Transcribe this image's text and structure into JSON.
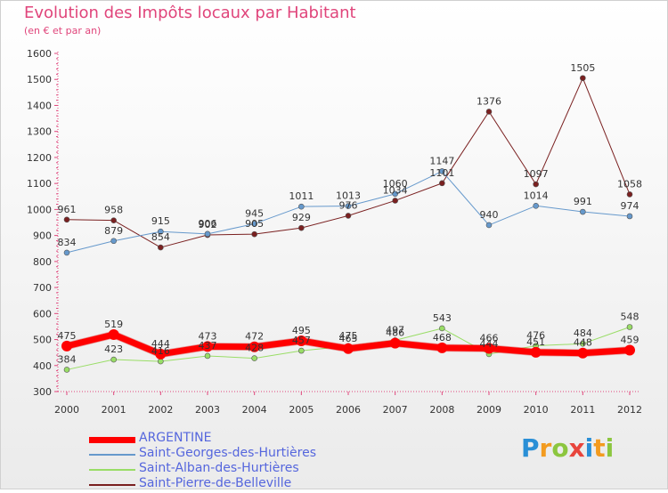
{
  "title": "Evolution des Impôts locaux par Habitant",
  "subtitle": "(en € et par an)",
  "logo": {
    "text": "Proxiti",
    "letters": [
      {
        "ch": "P",
        "color": "#2a8fd6"
      },
      {
        "ch": "r",
        "color": "#f39b1f"
      },
      {
        "ch": "o",
        "color": "#8cc63f"
      },
      {
        "ch": "x",
        "color": "#e8453c"
      },
      {
        "ch": "i",
        "color": "#2a8fd6"
      },
      {
        "ch": "t",
        "color": "#f39b1f"
      },
      {
        "ch": "i",
        "color": "#8cc63f"
      }
    ]
  },
  "chart_data": {
    "type": "line",
    "x": [
      "2000",
      "2001",
      "2002",
      "2003",
      "2004",
      "2005",
      "2006",
      "2007",
      "2008",
      "2009",
      "2010",
      "2011",
      "2012"
    ],
    "ylim": [
      300,
      1600
    ],
    "yticks": [
      300,
      400,
      500,
      600,
      700,
      800,
      900,
      1000,
      1100,
      1200,
      1300,
      1400,
      1500,
      1600
    ],
    "grid": false,
    "legend_position": "bottom-left",
    "series": [
      {
        "name": "ARGENTINE",
        "color": "#ff0000",
        "values": [
          475,
          519,
          444,
          473,
          472,
          495,
          465,
          486,
          468,
          466,
          451,
          448,
          459
        ]
      },
      {
        "name": "Saint-Georges-des-Hurtières",
        "color": "#6699cc",
        "values": [
          834,
          879,
          915,
          906,
          945,
          1011,
          1013,
          1060,
          1147,
          940,
          1014,
          991,
          974
        ]
      },
      {
        "name": "Saint-Alban-des-Hurtières",
        "color": "#99dd66",
        "values": [
          384,
          423,
          416,
          437,
          428,
          457,
          475,
          497,
          543,
          444,
          476,
          484,
          548
        ]
      },
      {
        "name": "Saint-Pierre-de-Belleville",
        "color": "#7a2020",
        "values": [
          961,
          958,
          854,
          902,
          905,
          929,
          976,
          1034,
          1101,
          1376,
          1097,
          1505,
          1058
        ]
      }
    ]
  }
}
